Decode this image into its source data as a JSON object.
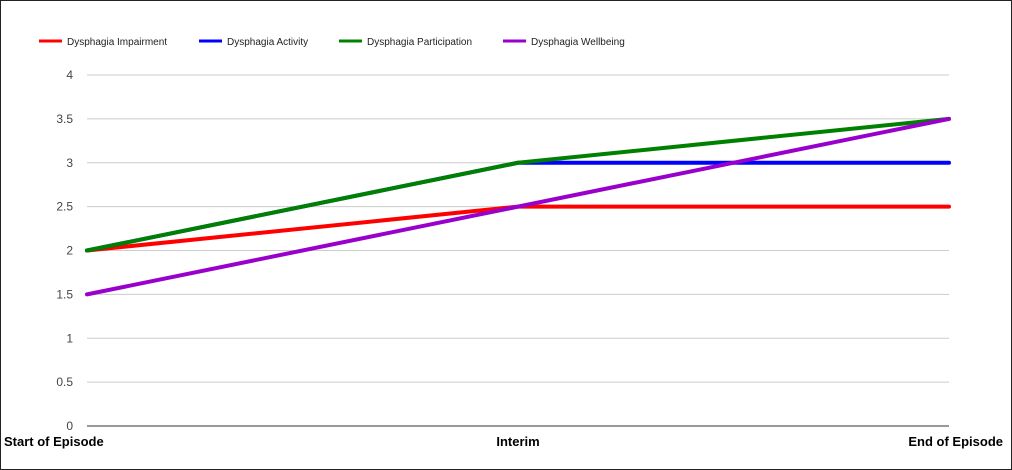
{
  "chart_data": {
    "type": "line",
    "title": "",
    "xlabel": "",
    "ylabel": "",
    "categories": [
      "Start of Episode",
      "Interim",
      "End of Episode"
    ],
    "ylim": [
      0,
      4
    ],
    "yticks": [
      "0",
      "0.5",
      "1",
      "1.5",
      "2",
      "2.5",
      "3",
      "3.5",
      "4"
    ],
    "grid": "horizontal",
    "legend_position": "top-left",
    "series": [
      {
        "name": "Dysphagia Impairment",
        "color": "#ff0000",
        "values": [
          2,
          2.5,
          2.5
        ]
      },
      {
        "name": "Dysphagia Activity",
        "color": "#0000ff",
        "values": [
          2,
          3,
          3
        ]
      },
      {
        "name": "Dysphagia Participation",
        "color": "#008000",
        "values": [
          2,
          3,
          3.5
        ]
      },
      {
        "name": "Dysphagia Wellbeing",
        "color": "#9900cc",
        "values": [
          1.5,
          2.5,
          3.5
        ]
      }
    ]
  }
}
